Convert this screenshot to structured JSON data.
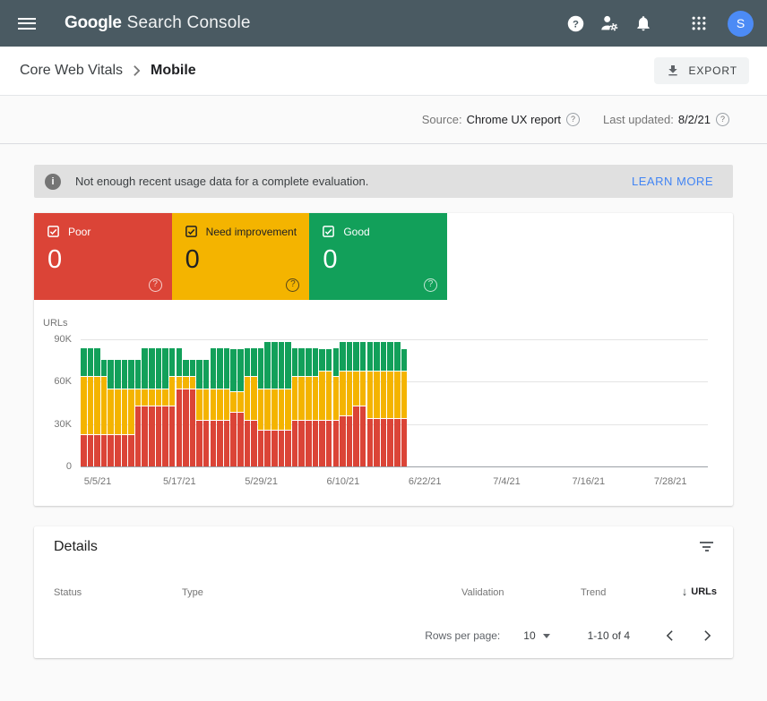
{
  "colors": {
    "topbar_bg": "#4a5a62",
    "avatar_bg": "#4c8bf5",
    "poor": "#db4437",
    "need_improvement": "#f4b400",
    "good": "#12a05a",
    "link_blue": "#4285f4",
    "banner_bg": "#e0e0e0"
  },
  "topbar": {
    "title_bold": "Google",
    "title_rest": "Search Console",
    "avatar_initial": "S"
  },
  "breadcrumb": {
    "parent": "Core Web Vitals",
    "current": "Mobile",
    "export_label": "EXPORT"
  },
  "meta": {
    "source_label": "Source:",
    "source_value": "Chrome UX report",
    "updated_label": "Last updated:",
    "updated_value": "8/2/21"
  },
  "banner": {
    "text": "Not enough recent usage data for a complete evaluation.",
    "action": "LEARN MORE"
  },
  "status_cards": [
    {
      "label": "Poor",
      "value": "0",
      "color": "#db4437",
      "text_color": "#ffffff"
    },
    {
      "label": "Need improvement",
      "value": "0",
      "color": "#f4b400",
      "text_color": "#202124"
    },
    {
      "label": "Good",
      "value": "0",
      "color": "#12a05a",
      "text_color": "#ffffff"
    }
  ],
  "icons": {
    "help_glyph": "?",
    "info_glyph": "i",
    "sort_desc_glyph": "↓"
  },
  "chart_data": {
    "type": "bar",
    "stacked": true,
    "title": "",
    "ylabel": "URLs",
    "xlabel": "",
    "grid": true,
    "legend_position": "none",
    "ylim": [
      0,
      90000
    ],
    "value_unit": "thousands of URLs",
    "y_tick_values": [
      0,
      30,
      60,
      90
    ],
    "y_tick_labels": [
      "0",
      "30K",
      "60K",
      "90K"
    ],
    "x_tick_labels": [
      "5/5/21",
      "5/17/21",
      "5/29/21",
      "6/10/21",
      "6/22/21",
      "7/4/21",
      "7/16/21",
      "7/28/21"
    ],
    "x_tick_slots": [
      2,
      14,
      26,
      38,
      50,
      62,
      74,
      86
    ],
    "total_slots": 92,
    "dates": [
      "5/3/21",
      "5/4/21",
      "5/5/21",
      "5/6/21",
      "5/7/21",
      "5/8/21",
      "5/9/21",
      "5/10/21",
      "5/11/21",
      "5/12/21",
      "5/13/21",
      "5/14/21",
      "5/15/21",
      "5/16/21",
      "5/17/21",
      "5/18/21",
      "5/19/21",
      "5/20/21",
      "5/21/21",
      "5/22/21",
      "5/23/21",
      "5/24/21",
      "5/25/21",
      "5/26/21",
      "5/27/21",
      "5/28/21",
      "5/29/21",
      "5/30/21",
      "5/31/21",
      "6/1/21",
      "6/2/21",
      "6/3/21",
      "6/4/21",
      "6/5/21",
      "6/6/21",
      "6/7/21",
      "6/8/21",
      "6/9/21",
      "6/10/21",
      "6/11/21",
      "6/12/21",
      "6/13/21",
      "6/14/21",
      "6/15/21",
      "6/16/21",
      "6/17/21",
      "6/18/21",
      "6/19/21"
    ],
    "series": [
      {
        "name": "Poor",
        "color": "#db4437",
        "values": [
          23,
          23,
          23,
          23,
          23,
          23,
          23,
          23,
          43,
          43,
          43,
          43,
          43,
          43,
          55,
          55,
          55,
          33,
          33,
          33,
          33,
          33,
          39,
          39,
          33,
          33,
          26,
          26,
          26,
          26,
          26,
          33,
          33,
          33,
          33,
          33,
          33,
          33,
          36,
          36,
          43,
          43,
          34,
          34,
          34,
          34,
          34,
          34
        ]
      },
      {
        "name": "Need improvement",
        "color": "#f4b400",
        "values": [
          41,
          41,
          41,
          41,
          32,
          32,
          32,
          32,
          12,
          12,
          12,
          12,
          12,
          21,
          9,
          9,
          9,
          22,
          22,
          22,
          22,
          22,
          14,
          14,
          31,
          31,
          29,
          29,
          29,
          29,
          29,
          31,
          31,
          31,
          31,
          35,
          35,
          31,
          32,
          32,
          25,
          25,
          34,
          34,
          34,
          34,
          34,
          34
        ]
      },
      {
        "name": "Good",
        "color": "#12a05a",
        "values": [
          20,
          20,
          20,
          12,
          21,
          21,
          21,
          21,
          21,
          29,
          29,
          29,
          29,
          20,
          20,
          12,
          12,
          21,
          21,
          29,
          29,
          29,
          31,
          31,
          20,
          20,
          29,
          34,
          34,
          34,
          34,
          20,
          20,
          20,
          20,
          16,
          16,
          20,
          21,
          21,
          21,
          21,
          21,
          21,
          21,
          21,
          21,
          16
        ]
      }
    ]
  },
  "details": {
    "title": "Details",
    "columns": [
      "Status",
      "Type",
      "Validation",
      "Trend",
      "URLs"
    ],
    "sorted_column": "URLs",
    "sort_direction": "desc",
    "rows": [],
    "pagination": {
      "rows_per_page_label": "Rows per page:",
      "rows_per_page": "10",
      "range_text": "1-10 of 4"
    }
  }
}
